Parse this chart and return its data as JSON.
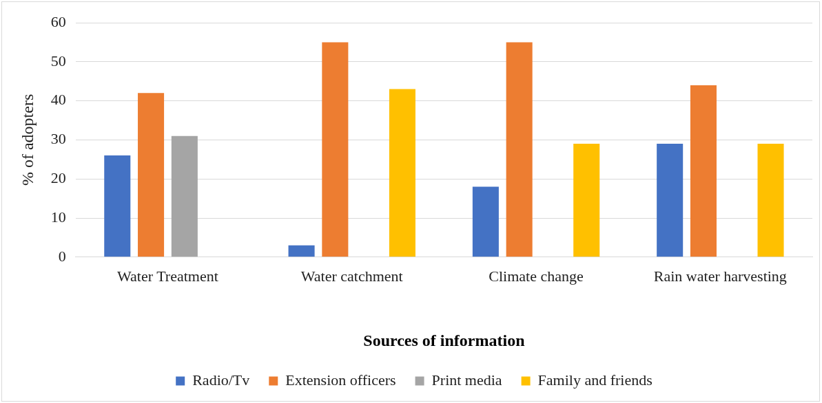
{
  "chart_data": {
    "type": "bar",
    "xlabel": "Sources of information",
    "ylabel": "% of adopters",
    "categories": [
      "Water Treatment",
      "Water catchment",
      "Climate change",
      "Rain water harvesting"
    ],
    "series": [
      {
        "name": "Radio/Tv",
        "color": "#4472c4",
        "values": [
          26,
          3,
          18,
          29
        ]
      },
      {
        "name": "Extension officers",
        "color": "#ed7d31",
        "values": [
          42,
          55,
          55,
          44
        ]
      },
      {
        "name": "Print media",
        "color": "#a5a5a5",
        "values": [
          31,
          null,
          null,
          null
        ]
      },
      {
        "name": "Family and friends",
        "color": "#ffc000",
        "values": [
          null,
          43,
          29,
          29
        ]
      }
    ],
    "ylim": [
      0,
      60
    ],
    "yticks": [
      0,
      10,
      20,
      30,
      40,
      50,
      60
    ],
    "grid": "y",
    "legend": "bottom"
  }
}
